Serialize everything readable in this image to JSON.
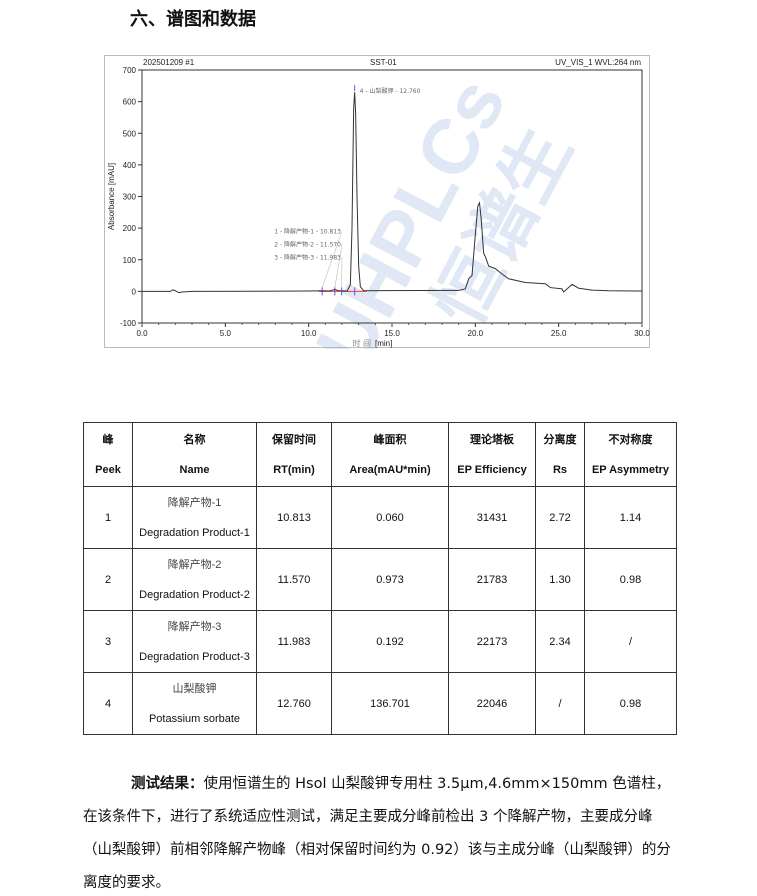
{
  "section_title": "六、谱图和数据",
  "chart": {
    "header_left": "202501209 #1",
    "header_center": "SST-01",
    "header_right": "UV_VIS_1 WVL:264 nm",
    "watermark": "UHPLCs 恒谱生 ®",
    "colors": {
      "trace": "#333333",
      "baseline": "#ff3333",
      "markers": "#5555ff",
      "watermark": "#9fb8d8"
    }
  },
  "chart_data": {
    "type": "line",
    "xlabel_zh": "时 间",
    "xlabel": "[min]",
    "ylabel": "Absorbance [mAU]",
    "xlim": [
      0,
      30
    ],
    "ylim": [
      -100,
      700
    ],
    "xticks": [
      "0.0",
      "5.0",
      "10.0",
      "15.0",
      "20.0",
      "25.0",
      "30.0"
    ],
    "yticks": [
      "-100",
      "0",
      "100",
      "200",
      "300",
      "400",
      "500",
      "600",
      "700"
    ],
    "peak_labels": [
      {
        "rt": 10.813,
        "text": "1 - 降解产物-1 - 10.813"
      },
      {
        "rt": 11.57,
        "text": "2 - 降解产物-2 - 11.570"
      },
      {
        "rt": 11.983,
        "text": "3 - 降解产物-3 - 11.983"
      },
      {
        "rt": 12.76,
        "text": "4 - 山梨酸钾 - 12.760"
      }
    ],
    "trace": [
      [
        0,
        0
      ],
      [
        1.7,
        0
      ],
      [
        1.85,
        5
      ],
      [
        2.0,
        2
      ],
      [
        2.2,
        -4
      ],
      [
        2.4,
        -2
      ],
      [
        3,
        0
      ],
      [
        10,
        1
      ],
      [
        10.8,
        2
      ],
      [
        11.2,
        1
      ],
      [
        11.57,
        6
      ],
      [
        11.8,
        2
      ],
      [
        12.3,
        1
      ],
      [
        12.5,
        20
      ],
      [
        12.6,
        200
      ],
      [
        12.7,
        580
      ],
      [
        12.76,
        630
      ],
      [
        12.82,
        560
      ],
      [
        12.9,
        300
      ],
      [
        13.0,
        80
      ],
      [
        13.1,
        15
      ],
      [
        13.3,
        2
      ],
      [
        19,
        3
      ],
      [
        19.4,
        8
      ],
      [
        19.6,
        40
      ],
      [
        19.8,
        50
      ],
      [
        20.0,
        180
      ],
      [
        20.15,
        270
      ],
      [
        20.25,
        280
      ],
      [
        20.35,
        230
      ],
      [
        20.5,
        120
      ],
      [
        20.6,
        110
      ],
      [
        20.8,
        80
      ],
      [
        21.2,
        72
      ],
      [
        21.6,
        55
      ],
      [
        22,
        40
      ],
      [
        23,
        28
      ],
      [
        24.2,
        24
      ],
      [
        24.5,
        12
      ],
      [
        25.2,
        8
      ],
      [
        25.3,
        -2
      ],
      [
        25.45,
        5
      ],
      [
        25.8,
        22
      ],
      [
        26.2,
        10
      ],
      [
        27,
        4
      ],
      [
        28,
        2
      ],
      [
        30,
        1
      ]
    ]
  },
  "table": {
    "headers": [
      [
        "峰",
        "Peek"
      ],
      [
        "名称",
        "Name"
      ],
      [
        "保留时间",
        "RT(min)"
      ],
      [
        "峰面积",
        "Area(mAU*min)"
      ],
      [
        "理论塔板",
        "EP Efficiency"
      ],
      [
        "分离度",
        "Rs"
      ],
      [
        "不对称度",
        "EP Asymmetry"
      ]
    ],
    "rows": [
      {
        "peak": "1",
        "name_zh": "降解产物-1",
        "name_en": "Degradation Product-1",
        "rt": "10.813",
        "area": "0.060",
        "eff": "31431",
        "rs": "2.72",
        "asym": "1.14"
      },
      {
        "peak": "2",
        "name_zh": "降解产物-2",
        "name_en": "Degradation Product-2",
        "rt": "11.570",
        "area": "0.973",
        "eff": "21783",
        "rs": "1.30",
        "asym": "0.98"
      },
      {
        "peak": "3",
        "name_zh": "降解产物-3",
        "name_en": "Degradation Product-3",
        "rt": "11.983",
        "area": "0.192",
        "eff": "22173",
        "rs": "2.34",
        "asym": "/"
      },
      {
        "peak": "4",
        "name_zh": "山梨酸钾",
        "name_en": "Potassium sorbate",
        "rt": "12.760",
        "area": "136.701",
        "eff": "22046",
        "rs": "/",
        "asym": "0.98"
      }
    ]
  },
  "result": {
    "label": "测试结果：",
    "text": "使用恒谱生的 Hsol  山梨酸钾专用柱  3.5μm,4.6mm×150mm 色谱柱，在该条件下，进行了系统适应性测试，满足主要成分峰前检出 3 个降解产物，主要成分峰（山梨酸钾）前相邻降解产物峰（相对保留时间约为 0.92）该与主成分峰（山梨酸钾）的分离度的要求。"
  }
}
